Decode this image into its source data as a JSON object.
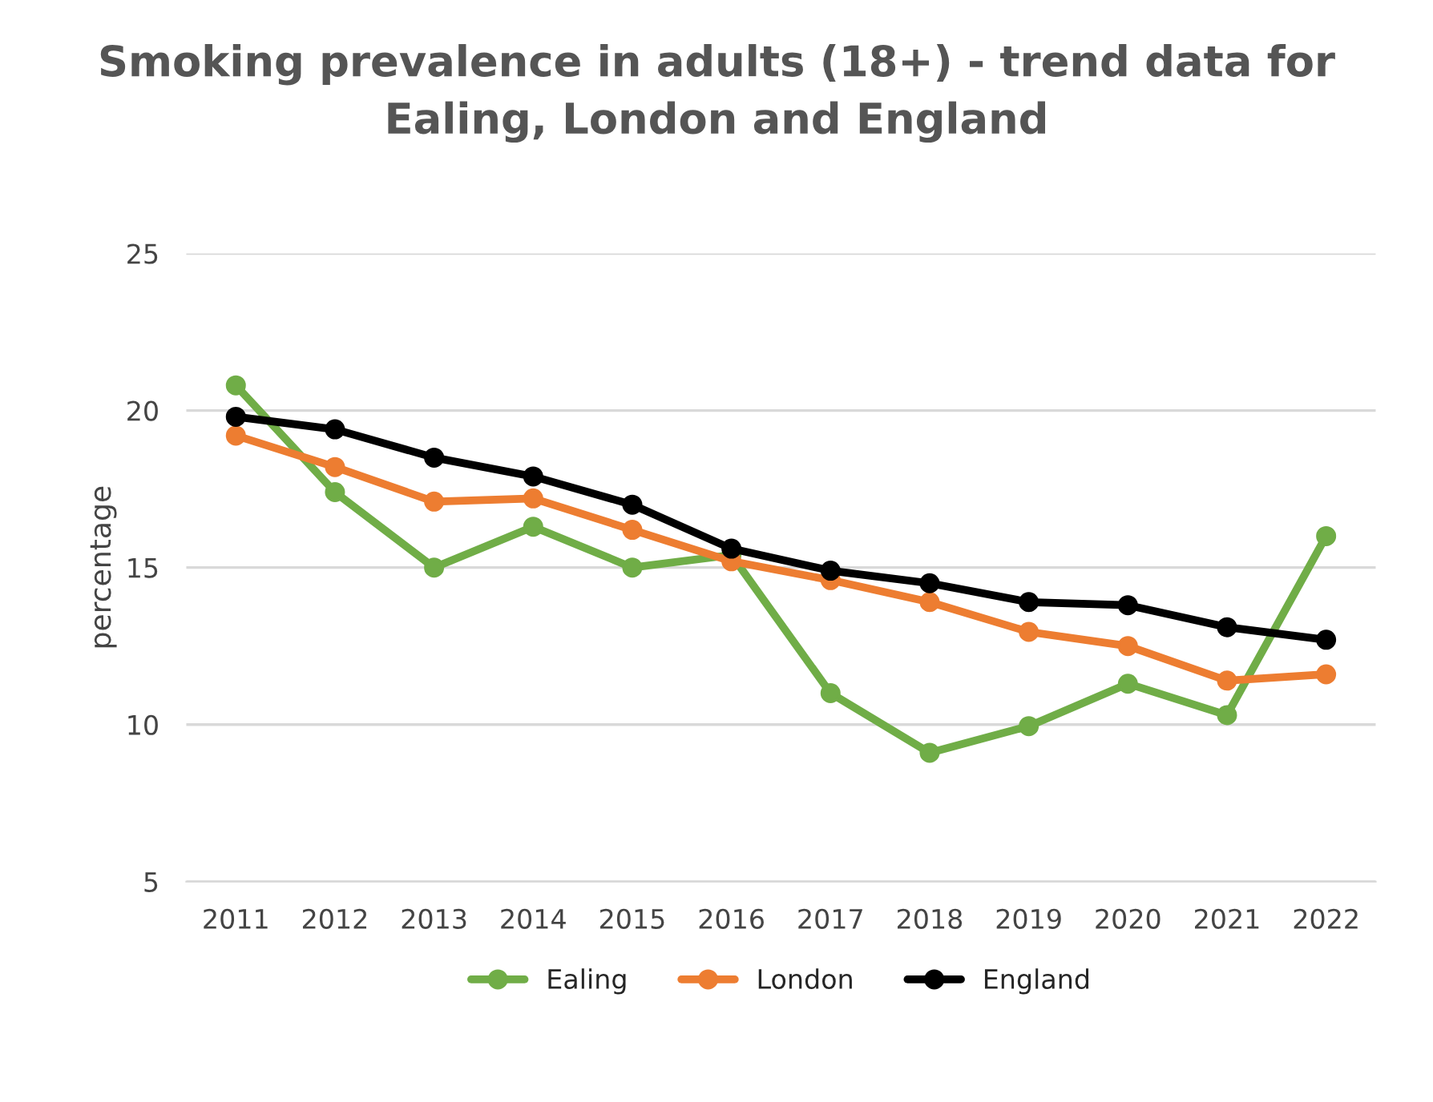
{
  "chart_data": {
    "type": "line",
    "title": "Smoking prevalence in adults (18+) - trend data for\nEaling, London and England",
    "ylabel": "percentage",
    "categories": [
      "2011",
      "2012",
      "2013",
      "2014",
      "2015",
      "2016",
      "2017",
      "2018",
      "2019",
      "2020",
      "2021",
      "2022"
    ],
    "series": [
      {
        "name": "Ealing",
        "color": "#70ad47",
        "values": [
          20.8,
          17.4,
          15.0,
          16.3,
          15.0,
          15.4,
          11.0,
          9.1,
          9.95,
          11.3,
          10.3,
          16.0
        ]
      },
      {
        "name": "London",
        "color": "#ed7d31",
        "values": [
          19.2,
          18.2,
          17.1,
          17.2,
          16.2,
          15.2,
          14.6,
          13.9,
          12.95,
          12.5,
          11.4,
          11.6
        ]
      },
      {
        "name": "England",
        "color": "#000000",
        "values": [
          19.8,
          19.4,
          18.5,
          17.9,
          17.0,
          15.6,
          14.9,
          14.5,
          13.9,
          13.8,
          13.1,
          12.7
        ]
      }
    ],
    "ylim": [
      5,
      25
    ],
    "yticks": [
      5,
      10,
      15,
      20,
      25
    ],
    "grid": "y",
    "legend": "bottom",
    "marker": "circle",
    "line_style": "solid"
  }
}
